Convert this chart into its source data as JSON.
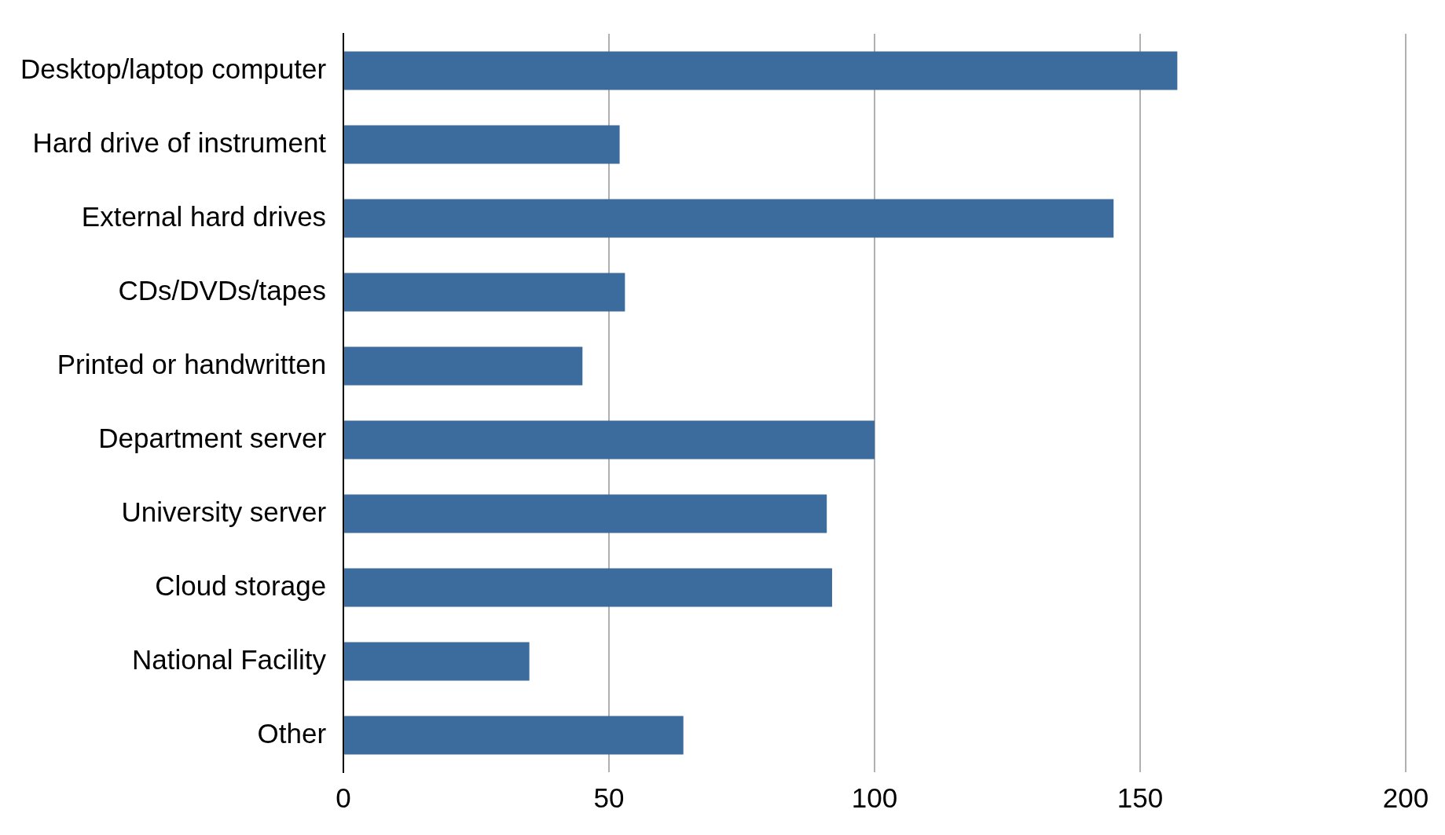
{
  "chart_data": {
    "type": "bar",
    "orientation": "horizontal",
    "categories": [
      "Desktop/laptop computer",
      "Hard drive of instrument",
      "External hard drives",
      "CDs/DVDs/tapes",
      "Printed or handwritten",
      "Department server",
      "University server",
      "Cloud storage",
      "National Facility",
      "Other"
    ],
    "values": [
      157,
      52,
      145,
      53,
      45,
      100,
      91,
      92,
      35,
      64
    ],
    "color": "#3c6b9e",
    "xlim": [
      0,
      200
    ],
    "xticks": [
      0,
      50,
      100,
      150,
      200
    ],
    "grid": "x",
    "legend": false
  }
}
